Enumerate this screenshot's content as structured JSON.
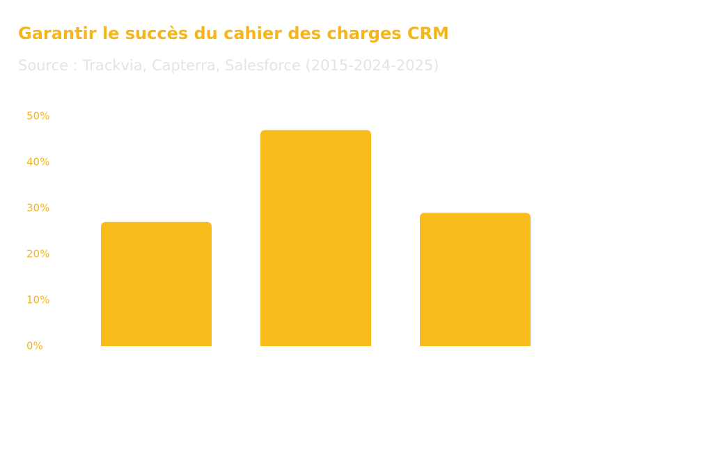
{
  "chart_data": {
    "type": "bar",
    "title": "Garantir le succès du cahier des charges CRM",
    "subtitle": "Source : Trackvia, Capterra, Salesforce (2015-2024-2025)",
    "categories": [
      null,
      null,
      null
    ],
    "values": [
      27,
      47,
      29
    ],
    "color": "#f8bc1d",
    "ylim": [
      0,
      50
    ],
    "yticks": [
      {
        "value": 0,
        "label": "0%"
      },
      {
        "value": 10,
        "label": "10%"
      },
      {
        "value": 20,
        "label": "20%"
      },
      {
        "value": 30,
        "label": "30%"
      },
      {
        "value": 40,
        "label": "40%"
      },
      {
        "value": 50,
        "label": "50%"
      }
    ],
    "grid": false
  }
}
